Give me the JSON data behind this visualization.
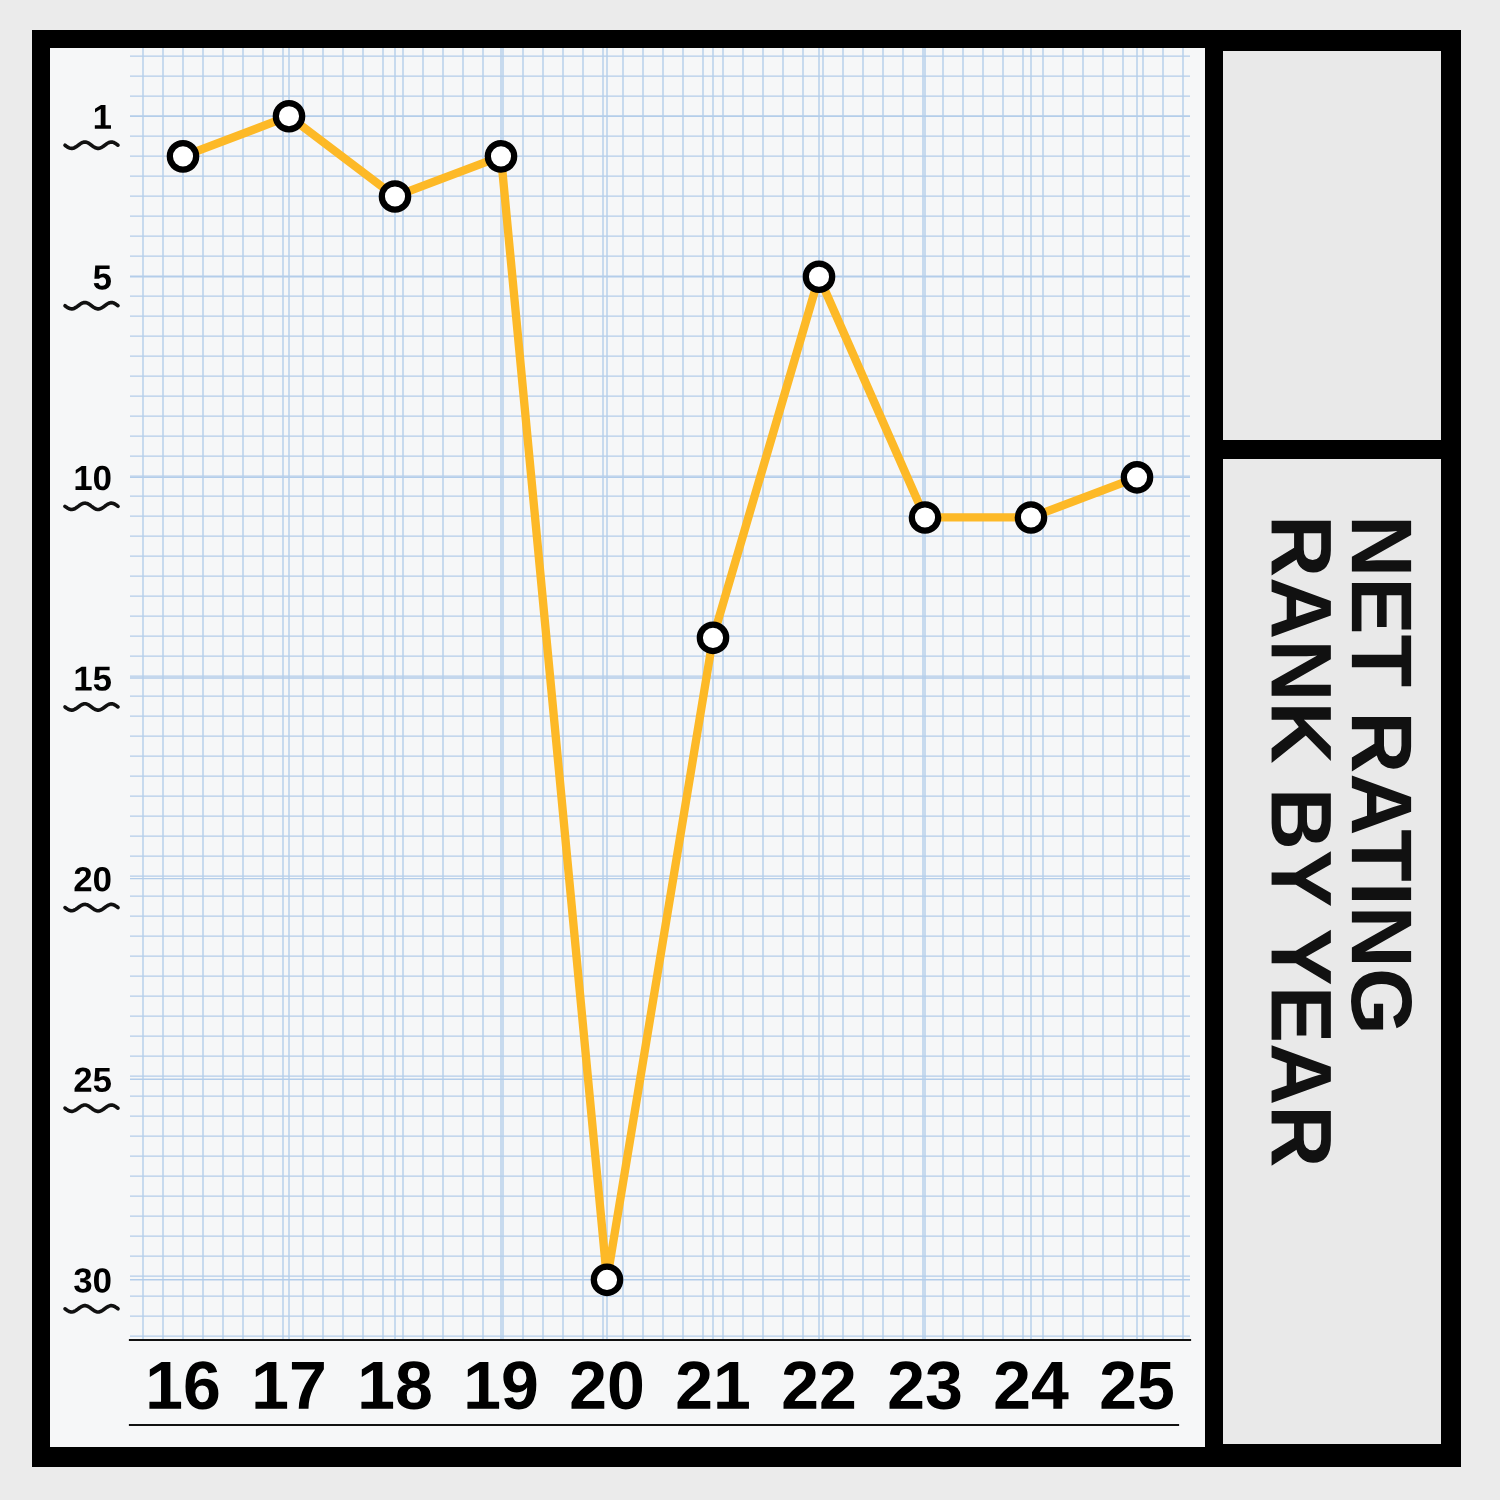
{
  "chart_data": {
    "type": "line",
    "title": "NET RATING\nRANK BY YEAR",
    "categories": [
      "16",
      "17",
      "18",
      "19",
      "20",
      "21",
      "22",
      "23",
      "24",
      "25"
    ],
    "values": [
      2,
      1,
      3,
      2,
      30,
      14,
      5,
      11,
      11,
      10
    ],
    "color": "#fdb927",
    "ylim": [
      31.5,
      -0.7
    ],
    "yticks": [
      1,
      5,
      10,
      15,
      20,
      25,
      30
    ],
    "grid": true,
    "marker": "circle",
    "line_style": "solid"
  }
}
